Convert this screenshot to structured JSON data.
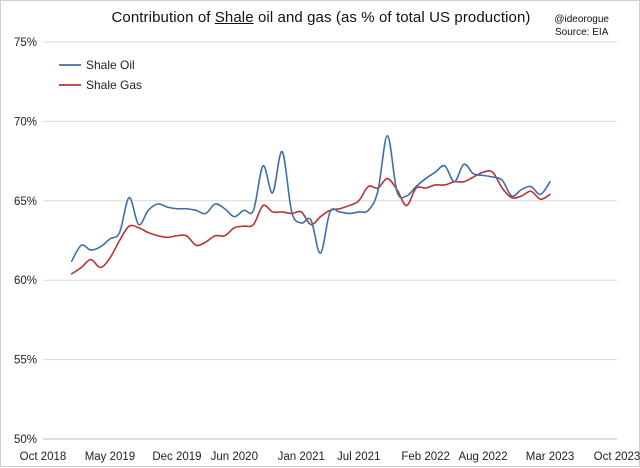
{
  "title": {
    "before": "Contribution of ",
    "underlined": "Shale",
    "after": " oil and gas (as % of total US production)"
  },
  "credit": {
    "handle": "@ideorogue",
    "source": "Source: EIA"
  },
  "chart_data": {
    "type": "line",
    "title": "Contribution of Shale oil and gas (as % of total US production)",
    "xlabel": "",
    "ylabel": "",
    "ylim": [
      50,
      75
    ],
    "y_ticks": [
      50,
      55,
      60,
      65,
      70,
      75
    ],
    "y_tick_labels": [
      "50%",
      "55%",
      "60%",
      "65%",
      "70%",
      "75%"
    ],
    "x_range": [
      "2018-10",
      "2023-10"
    ],
    "x_ticks": [
      "2018-10",
      "2019-05",
      "2019-12",
      "2020-06",
      "2021-01",
      "2021-07",
      "2022-02",
      "2022-08",
      "2023-03",
      "2023-10"
    ],
    "x_tick_labels": [
      "Oct 2018",
      "May 2019",
      "Dec 2019",
      "Jun 2020",
      "Jan 2021",
      "Jul 2021",
      "Feb 2022",
      "Aug 2022",
      "Mar 2023",
      "Oct 2023"
    ],
    "grid": "horizontal",
    "legend": "top-left",
    "series": [
      {
        "name": "Shale Oil",
        "color": "#3f6fa8",
        "points": [
          [
            "2019-01",
            61.2
          ],
          [
            "2019-02",
            62.2
          ],
          [
            "2019-03",
            61.9
          ],
          [
            "2019-04",
            62.1
          ],
          [
            "2019-05",
            62.6
          ],
          [
            "2019-06",
            63.0
          ],
          [
            "2019-07",
            65.2
          ],
          [
            "2019-08",
            63.5
          ],
          [
            "2019-09",
            64.4
          ],
          [
            "2019-10",
            64.8
          ],
          [
            "2019-11",
            64.6
          ],
          [
            "2019-12",
            64.5
          ],
          [
            "2020-01",
            64.5
          ],
          [
            "2020-02",
            64.4
          ],
          [
            "2020-03",
            64.2
          ],
          [
            "2020-04",
            64.8
          ],
          [
            "2020-05",
            64.5
          ],
          [
            "2020-06",
            64.0
          ],
          [
            "2020-07",
            64.4
          ],
          [
            "2020-08",
            64.4
          ],
          [
            "2020-09",
            67.2
          ],
          [
            "2020-10",
            65.5
          ],
          [
            "2020-11",
            68.1
          ],
          [
            "2020-12",
            64.3
          ],
          [
            "2021-01",
            63.6
          ],
          [
            "2021-02",
            63.8
          ],
          [
            "2021-03",
            61.7
          ],
          [
            "2021-04",
            64.3
          ],
          [
            "2021-05",
            64.3
          ],
          [
            "2021-06",
            64.2
          ],
          [
            "2021-07",
            64.3
          ],
          [
            "2021-08",
            64.4
          ],
          [
            "2021-09",
            65.6
          ],
          [
            "2021-10",
            69.1
          ],
          [
            "2021-11",
            65.6
          ],
          [
            "2021-12",
            65.3
          ],
          [
            "2022-01",
            65.9
          ],
          [
            "2022-02",
            66.4
          ],
          [
            "2022-03",
            66.8
          ],
          [
            "2022-04",
            67.2
          ],
          [
            "2022-05",
            66.2
          ],
          [
            "2022-06",
            67.3
          ],
          [
            "2022-07",
            66.7
          ],
          [
            "2022-08",
            66.6
          ],
          [
            "2022-09",
            66.5
          ],
          [
            "2022-10",
            66.3
          ],
          [
            "2022-11",
            65.3
          ],
          [
            "2022-12",
            65.7
          ],
          [
            "2023-01",
            65.9
          ],
          [
            "2023-02",
            65.4
          ],
          [
            "2023-03",
            66.2
          ]
        ]
      },
      {
        "name": "Shale Gas",
        "color": "#b83232",
        "points": [
          [
            "2019-01",
            60.4
          ],
          [
            "2019-02",
            60.8
          ],
          [
            "2019-03",
            61.3
          ],
          [
            "2019-04",
            60.8
          ],
          [
            "2019-05",
            61.4
          ],
          [
            "2019-06",
            62.5
          ],
          [
            "2019-07",
            63.4
          ],
          [
            "2019-08",
            63.3
          ],
          [
            "2019-09",
            63.0
          ],
          [
            "2019-10",
            62.8
          ],
          [
            "2019-11",
            62.7
          ],
          [
            "2019-12",
            62.8
          ],
          [
            "2020-01",
            62.8
          ],
          [
            "2020-02",
            62.2
          ],
          [
            "2020-03",
            62.4
          ],
          [
            "2020-04",
            62.8
          ],
          [
            "2020-05",
            62.8
          ],
          [
            "2020-06",
            63.3
          ],
          [
            "2020-07",
            63.4
          ],
          [
            "2020-08",
            63.5
          ],
          [
            "2020-09",
            64.7
          ],
          [
            "2020-10",
            64.3
          ],
          [
            "2020-11",
            64.3
          ],
          [
            "2020-12",
            64.2
          ],
          [
            "2021-01",
            64.3
          ],
          [
            "2021-02",
            63.5
          ],
          [
            "2021-03",
            64.0
          ],
          [
            "2021-04",
            64.4
          ],
          [
            "2021-05",
            64.5
          ],
          [
            "2021-06",
            64.7
          ],
          [
            "2021-07",
            65.0
          ],
          [
            "2021-08",
            65.9
          ],
          [
            "2021-09",
            65.8
          ],
          [
            "2021-10",
            66.4
          ],
          [
            "2021-11",
            65.7
          ],
          [
            "2021-12",
            64.7
          ],
          [
            "2022-01",
            65.8
          ],
          [
            "2022-02",
            65.8
          ],
          [
            "2022-03",
            66.0
          ],
          [
            "2022-04",
            66.0
          ],
          [
            "2022-05",
            66.2
          ],
          [
            "2022-06",
            66.2
          ],
          [
            "2022-07",
            66.5
          ],
          [
            "2022-08",
            66.8
          ],
          [
            "2022-09",
            66.8
          ],
          [
            "2022-10",
            65.8
          ],
          [
            "2022-11",
            65.2
          ],
          [
            "2022-12",
            65.3
          ],
          [
            "2023-01",
            65.6
          ],
          [
            "2023-02",
            65.1
          ],
          [
            "2023-03",
            65.4
          ]
        ]
      }
    ]
  }
}
